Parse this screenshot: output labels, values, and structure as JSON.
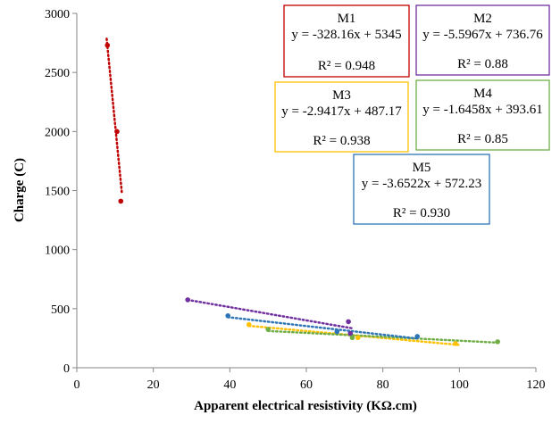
{
  "chart_data": {
    "type": "scatter",
    "xlabel": "Apparent electrical resistivity (KΩ.cm)",
    "ylabel": "Charge  (C)",
    "xlim": [
      0,
      120
    ],
    "ylim": [
      0,
      3000
    ],
    "xticks": [
      0,
      20,
      40,
      60,
      80,
      100,
      120
    ],
    "yticks": [
      0,
      500,
      1000,
      1500,
      2000,
      2500,
      3000
    ],
    "grid": false,
    "series": [
      {
        "name": "M1",
        "color": "#C00000",
        "points": [
          [
            8,
            2730
          ],
          [
            10.5,
            2000
          ],
          [
            11.5,
            1410
          ]
        ],
        "trend": {
          "slope": -328.16,
          "intercept": 5345,
          "x_range": [
            7.8,
            11.8
          ]
        },
        "equation": "y = -328.16x + 5345",
        "r2": "R² = 0.948"
      },
      {
        "name": "M2",
        "color": "#7030A0",
        "points": [
          [
            29,
            575
          ],
          [
            71,
            390
          ],
          [
            71.5,
            290
          ]
        ],
        "trend": {
          "slope": -5.5967,
          "intercept": 736.76,
          "x_range": [
            29,
            72
          ]
        },
        "equation": "y = -5.5967x + 736.76",
        "r2": "R² = 0.88"
      },
      {
        "name": "M3",
        "color": "#FFC000",
        "points": [
          [
            45,
            365
          ],
          [
            73.5,
            255
          ],
          [
            99,
            205
          ]
        ],
        "trend": {
          "slope": -2.9417,
          "intercept": 487.17,
          "x_range": [
            45,
            100
          ]
        },
        "equation": "y = -2.9417x + 487.17",
        "r2": "R² = 0.938"
      },
      {
        "name": "M4",
        "color": "#70AD47",
        "points": [
          [
            50,
            325
          ],
          [
            72,
            255
          ],
          [
            110,
            220
          ]
        ],
        "trend": {
          "slope": -1.6458,
          "intercept": 393.61,
          "x_range": [
            50,
            110
          ]
        },
        "equation": "y = -1.6458x + 393.61",
        "r2": "R² = 0.85"
      },
      {
        "name": "M5",
        "color": "#2E75B6",
        "points": [
          [
            39.5,
            440
          ],
          [
            68,
            305
          ],
          [
            89,
            265
          ]
        ],
        "trend": {
          "slope": -3.6522,
          "intercept": 572.23,
          "x_range": [
            39.5,
            89
          ]
        },
        "equation": "y = -3.6522x + 572.23",
        "r2": "R² = 0.930"
      }
    ]
  }
}
